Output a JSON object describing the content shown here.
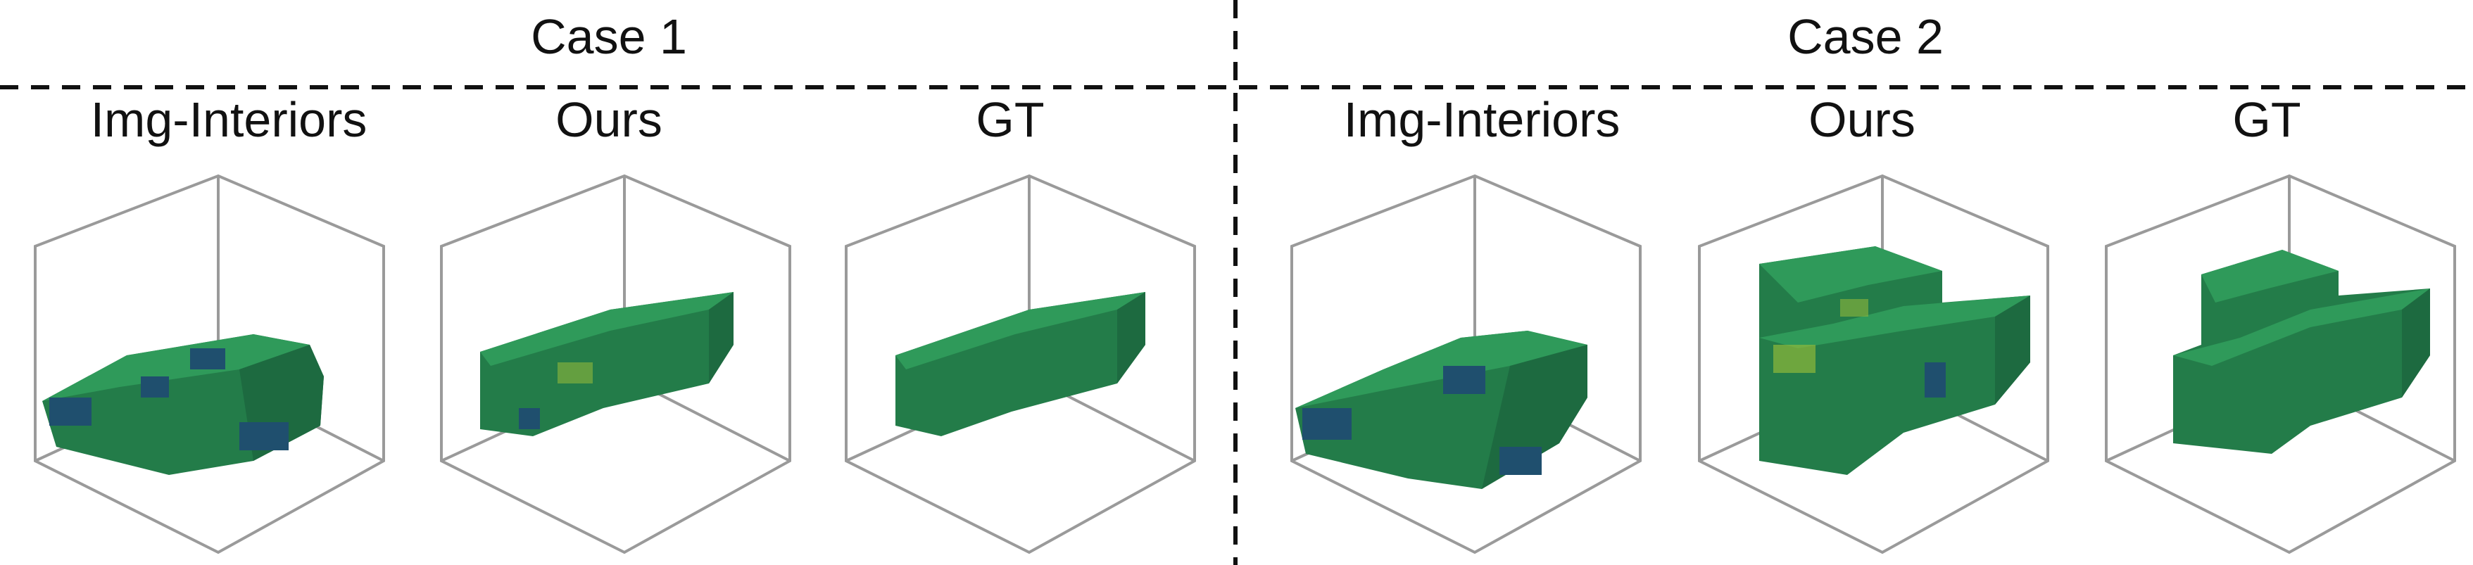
{
  "cases": [
    {
      "title": "Case 1",
      "columns": [
        "Img-Interiors",
        "Ours",
        "GT"
      ]
    },
    {
      "title": "Case 2",
      "columns": [
        "Img-Interiors",
        "Ours",
        "GT"
      ]
    }
  ],
  "colors": {
    "box_frame": "#9a9a9a",
    "voxel_top": "#2f9a5a",
    "voxel_front": "#237c49",
    "voxel_side": "#1d6a40",
    "voxel_dark": "#1f4f6e",
    "voxel_yellow": "#8fb83a",
    "divider": "#111111"
  }
}
